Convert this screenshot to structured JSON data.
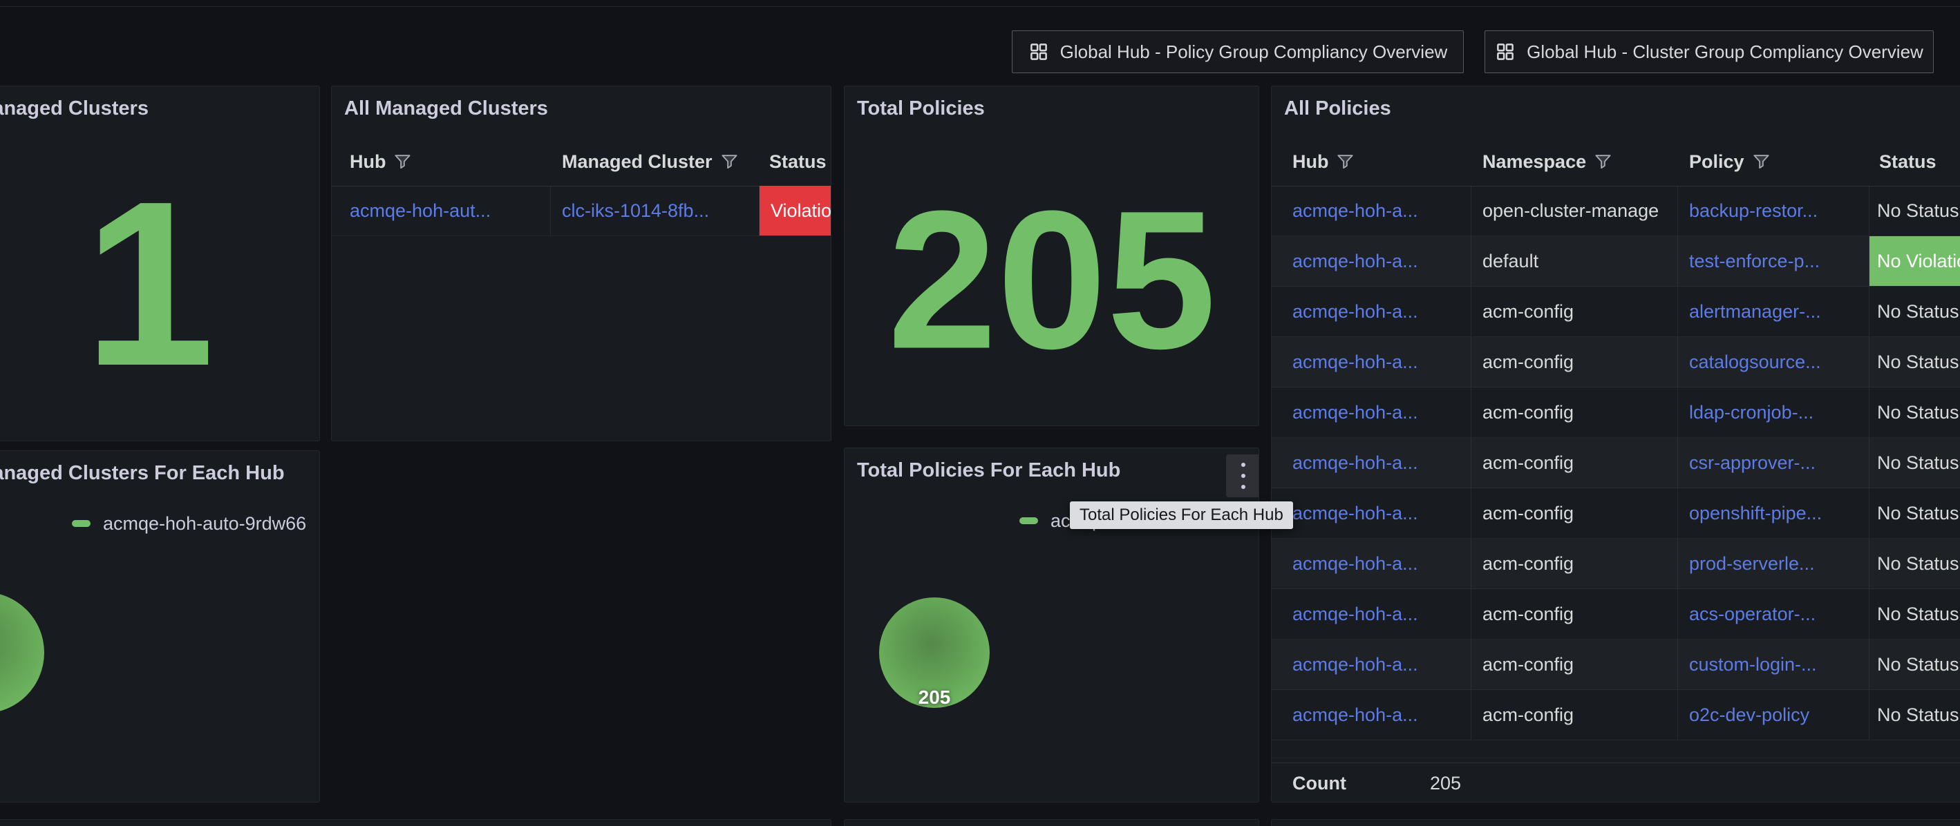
{
  "toolbar": {
    "dashboard_links": [
      {
        "label": "Global Hub - Policy Group Compliancy Overview",
        "icon": "dashboard-grid-icon"
      },
      {
        "label": "Global Hub - Cluster Group Compliancy Overview",
        "icon": "dashboard-grid-icon"
      }
    ]
  },
  "colors": {
    "page_bg": "#111217",
    "panel_bg": "#181b1f",
    "panel_border": "#26282e",
    "text": "#ccccdc",
    "text_bright": "#d8d9da",
    "link_blue": "#5d7ce6",
    "stat_green": "#73bf69",
    "status_red": "#e4383f",
    "status_green": "#73bf69",
    "tooltip_bg": "#dcdde0",
    "tooltip_text": "#15171c"
  },
  "tooltip": {
    "text": "Total Policies For Each Hub"
  },
  "panels": {
    "total_managed_clusters": {
      "title": "Total Managed Clusters",
      "value": "1"
    },
    "all_managed_clusters": {
      "title": "All Managed Clusters",
      "columns": [
        {
          "label": "Hub",
          "filter": true
        },
        {
          "label": "Managed Cluster",
          "filter": true
        },
        {
          "label": "Status",
          "filter": false
        }
      ],
      "row": {
        "hub": "acmqe-hoh-aut...",
        "managed_cluster": "clc-iks-1014-8fb...",
        "status": "Violations",
        "status_style": "red"
      }
    },
    "total_policies": {
      "title": "Total Policies",
      "value": "205"
    },
    "total_policies_for_each_hub": {
      "title": "Total Policies For Each Hub",
      "legend": [
        "acmqe-hoh-auto-9rdw66"
      ],
      "pie": {
        "label": "205",
        "value": 205
      },
      "menu_icon": "kebab-menu-icon"
    },
    "managed_clusters_for_each_hub": {
      "title": "Total Managed Clusters For Each Hub",
      "legend": [
        "acmqe-hoh-auto-9rdw66"
      ]
    },
    "all_policies": {
      "title": "All Policies",
      "columns": [
        {
          "label": "Hub",
          "filter": true
        },
        {
          "label": "Namespace",
          "filter": true
        },
        {
          "label": "Policy",
          "filter": true
        },
        {
          "label": "Status",
          "filter": false
        }
      ],
      "rows": [
        {
          "hub": "acmqe-hoh-a...",
          "namespace": "open-cluster-manage",
          "policy": "backup-restor...",
          "status": "No Status",
          "status_style": "none"
        },
        {
          "hub": "acmqe-hoh-a...",
          "namespace": "default",
          "policy": "test-enforce-p...",
          "status": "No Violations",
          "status_style": "green"
        },
        {
          "hub": "acmqe-hoh-a...",
          "namespace": "acm-config",
          "policy": "alertmanager-...",
          "status": "No Status",
          "status_style": "none"
        },
        {
          "hub": "acmqe-hoh-a...",
          "namespace": "acm-config",
          "policy": "catalogsource...",
          "status": "No Status",
          "status_style": "none"
        },
        {
          "hub": "acmqe-hoh-a...",
          "namespace": "acm-config",
          "policy": "ldap-cronjob-...",
          "status": "No Status",
          "status_style": "none"
        },
        {
          "hub": "acmqe-hoh-a...",
          "namespace": "acm-config",
          "policy": "csr-approver-...",
          "status": "No Status",
          "status_style": "none"
        },
        {
          "hub": "acmqe-hoh-a...",
          "namespace": "acm-config",
          "policy": "openshift-pipe...",
          "status": "No Status",
          "status_style": "none"
        },
        {
          "hub": "acmqe-hoh-a...",
          "namespace": "acm-config",
          "policy": "prod-serverle...",
          "status": "No Status",
          "status_style": "none"
        },
        {
          "hub": "acmqe-hoh-a...",
          "namespace": "acm-config",
          "policy": "acs-operator-...",
          "status": "No Status",
          "status_style": "none"
        },
        {
          "hub": "acmqe-hoh-a...",
          "namespace": "acm-config",
          "policy": "custom-login-...",
          "status": "No Status",
          "status_style": "none"
        },
        {
          "hub": "acmqe-hoh-a...",
          "namespace": "acm-config",
          "policy": "o2c-dev-policy",
          "status": "No Status",
          "status_style": "none"
        }
      ],
      "footer": {
        "label": "Count",
        "value": "205"
      }
    }
  },
  "chart_data": [
    {
      "type": "pie",
      "title": "Total Managed Clusters For Each Hub",
      "labels": [
        "acmqe-hoh-auto-9rdw66"
      ],
      "values": [
        1
      ],
      "legend_position": "top-right",
      "slice_color": "#73bf69"
    },
    {
      "type": "pie",
      "title": "Total Policies For Each Hub",
      "labels": [
        "acmqe-hoh-auto-9rdw66"
      ],
      "values": [
        205
      ],
      "legend_position": "top-right",
      "slice_color": "#73bf69"
    }
  ]
}
